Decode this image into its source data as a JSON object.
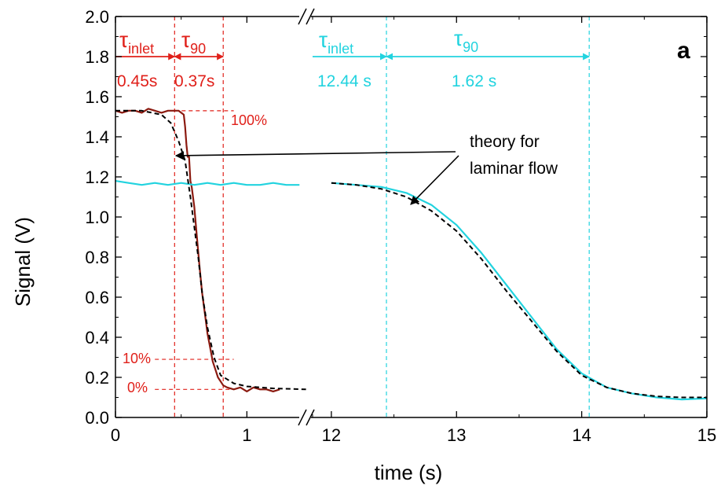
{
  "chart_data": {
    "type": "line",
    "xlabel": "time (s)",
    "ylabel": "Signal (V)",
    "panel_label": "a",
    "ylim": [
      0.0,
      2.0
    ],
    "yticks": [
      "0.0",
      "0.2",
      "0.4",
      "0.6",
      "0.8",
      "1.0",
      "1.2",
      "1.4",
      "1.6",
      "1.8",
      "2.0"
    ],
    "segments": [
      {
        "xlim": [
          0,
          1.5
        ],
        "xticks": [
          "0",
          "1"
        ]
      },
      {
        "xlim": [
          11.85,
          15
        ],
        "xticks": [
          "12",
          "13",
          "14",
          "15"
        ]
      }
    ],
    "axis_break": true,
    "colors": {
      "red": "#e0201a",
      "darkred": "#8b1a10",
      "cyan": "#22d3df",
      "theory": "#000000"
    },
    "series": [
      {
        "color": "#8b1a10",
        "segment": 0,
        "x": [
          0,
          0.05,
          0.1,
          0.15,
          0.2,
          0.25,
          0.3,
          0.35,
          0.4,
          0.45,
          0.48,
          0.5,
          0.52,
          0.53,
          0.54,
          0.55,
          0.56,
          0.57,
          0.58,
          0.6,
          0.62,
          0.64,
          0.66,
          0.68,
          0.7,
          0.72,
          0.74,
          0.76,
          0.78,
          0.8,
          0.82,
          0.85,
          0.9,
          0.95,
          1.0,
          1.05,
          1.1,
          1.15,
          1.2,
          1.25
        ],
        "y": [
          1.53,
          1.52,
          1.53,
          1.53,
          1.52,
          1.54,
          1.53,
          1.52,
          1.53,
          1.53,
          1.53,
          1.52,
          1.51,
          1.45,
          1.36,
          1.3,
          1.3,
          1.18,
          1.15,
          1.05,
          0.9,
          0.75,
          0.62,
          0.52,
          0.42,
          0.35,
          0.28,
          0.24,
          0.2,
          0.18,
          0.16,
          0.15,
          0.14,
          0.15,
          0.13,
          0.15,
          0.14,
          0.14,
          0.13,
          0.14
        ]
      },
      {
        "color": "#22d3df",
        "segment": 0,
        "x": [
          0,
          0.1,
          0.2,
          0.3,
          0.4,
          0.5,
          0.6,
          0.7,
          0.8,
          0.9,
          1.0,
          1.1,
          1.2,
          1.3,
          1.4
        ],
        "y": [
          1.18,
          1.17,
          1.16,
          1.17,
          1.16,
          1.17,
          1.16,
          1.17,
          1.16,
          1.17,
          1.16,
          1.16,
          1.17,
          1.16,
          1.16
        ]
      },
      {
        "color": "#000000",
        "dashed": true,
        "segment": 0,
        "x": [
          0,
          0.2,
          0.35,
          0.42,
          0.48,
          0.53,
          0.57,
          0.6,
          0.63,
          0.66,
          0.7,
          0.75,
          0.8,
          0.9,
          1.0,
          1.2,
          1.45
        ],
        "y": [
          1.53,
          1.53,
          1.51,
          1.47,
          1.38,
          1.28,
          1.1,
          0.95,
          0.8,
          0.62,
          0.45,
          0.3,
          0.21,
          0.17,
          0.155,
          0.145,
          0.14
        ]
      },
      {
        "color": "#22d3df",
        "segment": 1,
        "x": [
          12.0,
          12.2,
          12.4,
          12.6,
          12.8,
          13.0,
          13.2,
          13.4,
          13.6,
          13.8,
          14.0,
          14.2,
          14.4,
          14.6,
          14.8,
          15.0
        ],
        "y": [
          1.17,
          1.16,
          1.15,
          1.12,
          1.06,
          0.96,
          0.82,
          0.66,
          0.5,
          0.34,
          0.22,
          0.15,
          0.12,
          0.1,
          0.09,
          0.095
        ]
      },
      {
        "color": "#000000",
        "dashed": true,
        "segment": 1,
        "x": [
          12.0,
          12.2,
          12.4,
          12.6,
          12.8,
          13.0,
          13.2,
          13.4,
          13.6,
          13.8,
          14.0,
          14.2,
          14.4,
          14.6,
          14.8,
          15.0
        ],
        "y": [
          1.17,
          1.16,
          1.14,
          1.1,
          1.03,
          0.93,
          0.79,
          0.63,
          0.48,
          0.33,
          0.21,
          0.15,
          0.12,
          0.105,
          0.1,
          0.1
        ]
      }
    ],
    "vlines": [
      {
        "segment": 0,
        "x": 0.45,
        "color": "#e0201a"
      },
      {
        "segment": 0,
        "x": 0.82,
        "color": "#e0201a"
      },
      {
        "segment": 1,
        "x": 12.44,
        "color": "#22d3df"
      },
      {
        "segment": 1,
        "x": 14.06,
        "color": "#22d3df"
      }
    ],
    "hlines": [
      {
        "segment": 0,
        "y": 1.53,
        "x0": 0.45,
        "x1": 0.9,
        "color": "#e0201a",
        "label": "100%"
      },
      {
        "segment": 0,
        "y": 0.29,
        "x0": 0.3,
        "x1": 0.9,
        "color": "#e0201a",
        "label": "10%"
      },
      {
        "segment": 0,
        "y": 0.14,
        "x0": 0.3,
        "x1": 0.9,
        "color": "#e0201a",
        "label": "0%"
      }
    ],
    "arrows": [
      {
        "segment": 0,
        "y": 1.8,
        "x0": 0.0,
        "x1": 0.45,
        "color": "#e0201a",
        "head": "end"
      },
      {
        "segment": 0,
        "y": 1.8,
        "x0": 0.45,
        "x1": 0.82,
        "color": "#e0201a",
        "head": "both"
      },
      {
        "segment": 1,
        "y": 1.8,
        "x0": 11.85,
        "x1": 12.44,
        "color": "#22d3df",
        "head": "end"
      },
      {
        "segment": 1,
        "y": 1.8,
        "x0": 12.44,
        "x1": 14.06,
        "color": "#22d3df",
        "head": "both"
      }
    ],
    "annotations": {
      "tau_inlet_red": {
        "symbol": "τ",
        "sub": "inlet",
        "value": "0.45s"
      },
      "tau_90_red": {
        "symbol": "τ",
        "sub": "90",
        "value": "0.37s"
      },
      "tau_inlet_cyan": {
        "symbol": "τ",
        "sub": "inlet",
        "value": "12.44 s"
      },
      "tau_90_cyan": {
        "symbol": "τ",
        "sub": "90",
        "value": "1.62 s"
      },
      "theory_text": [
        "theory for",
        "laminar flow"
      ]
    }
  }
}
